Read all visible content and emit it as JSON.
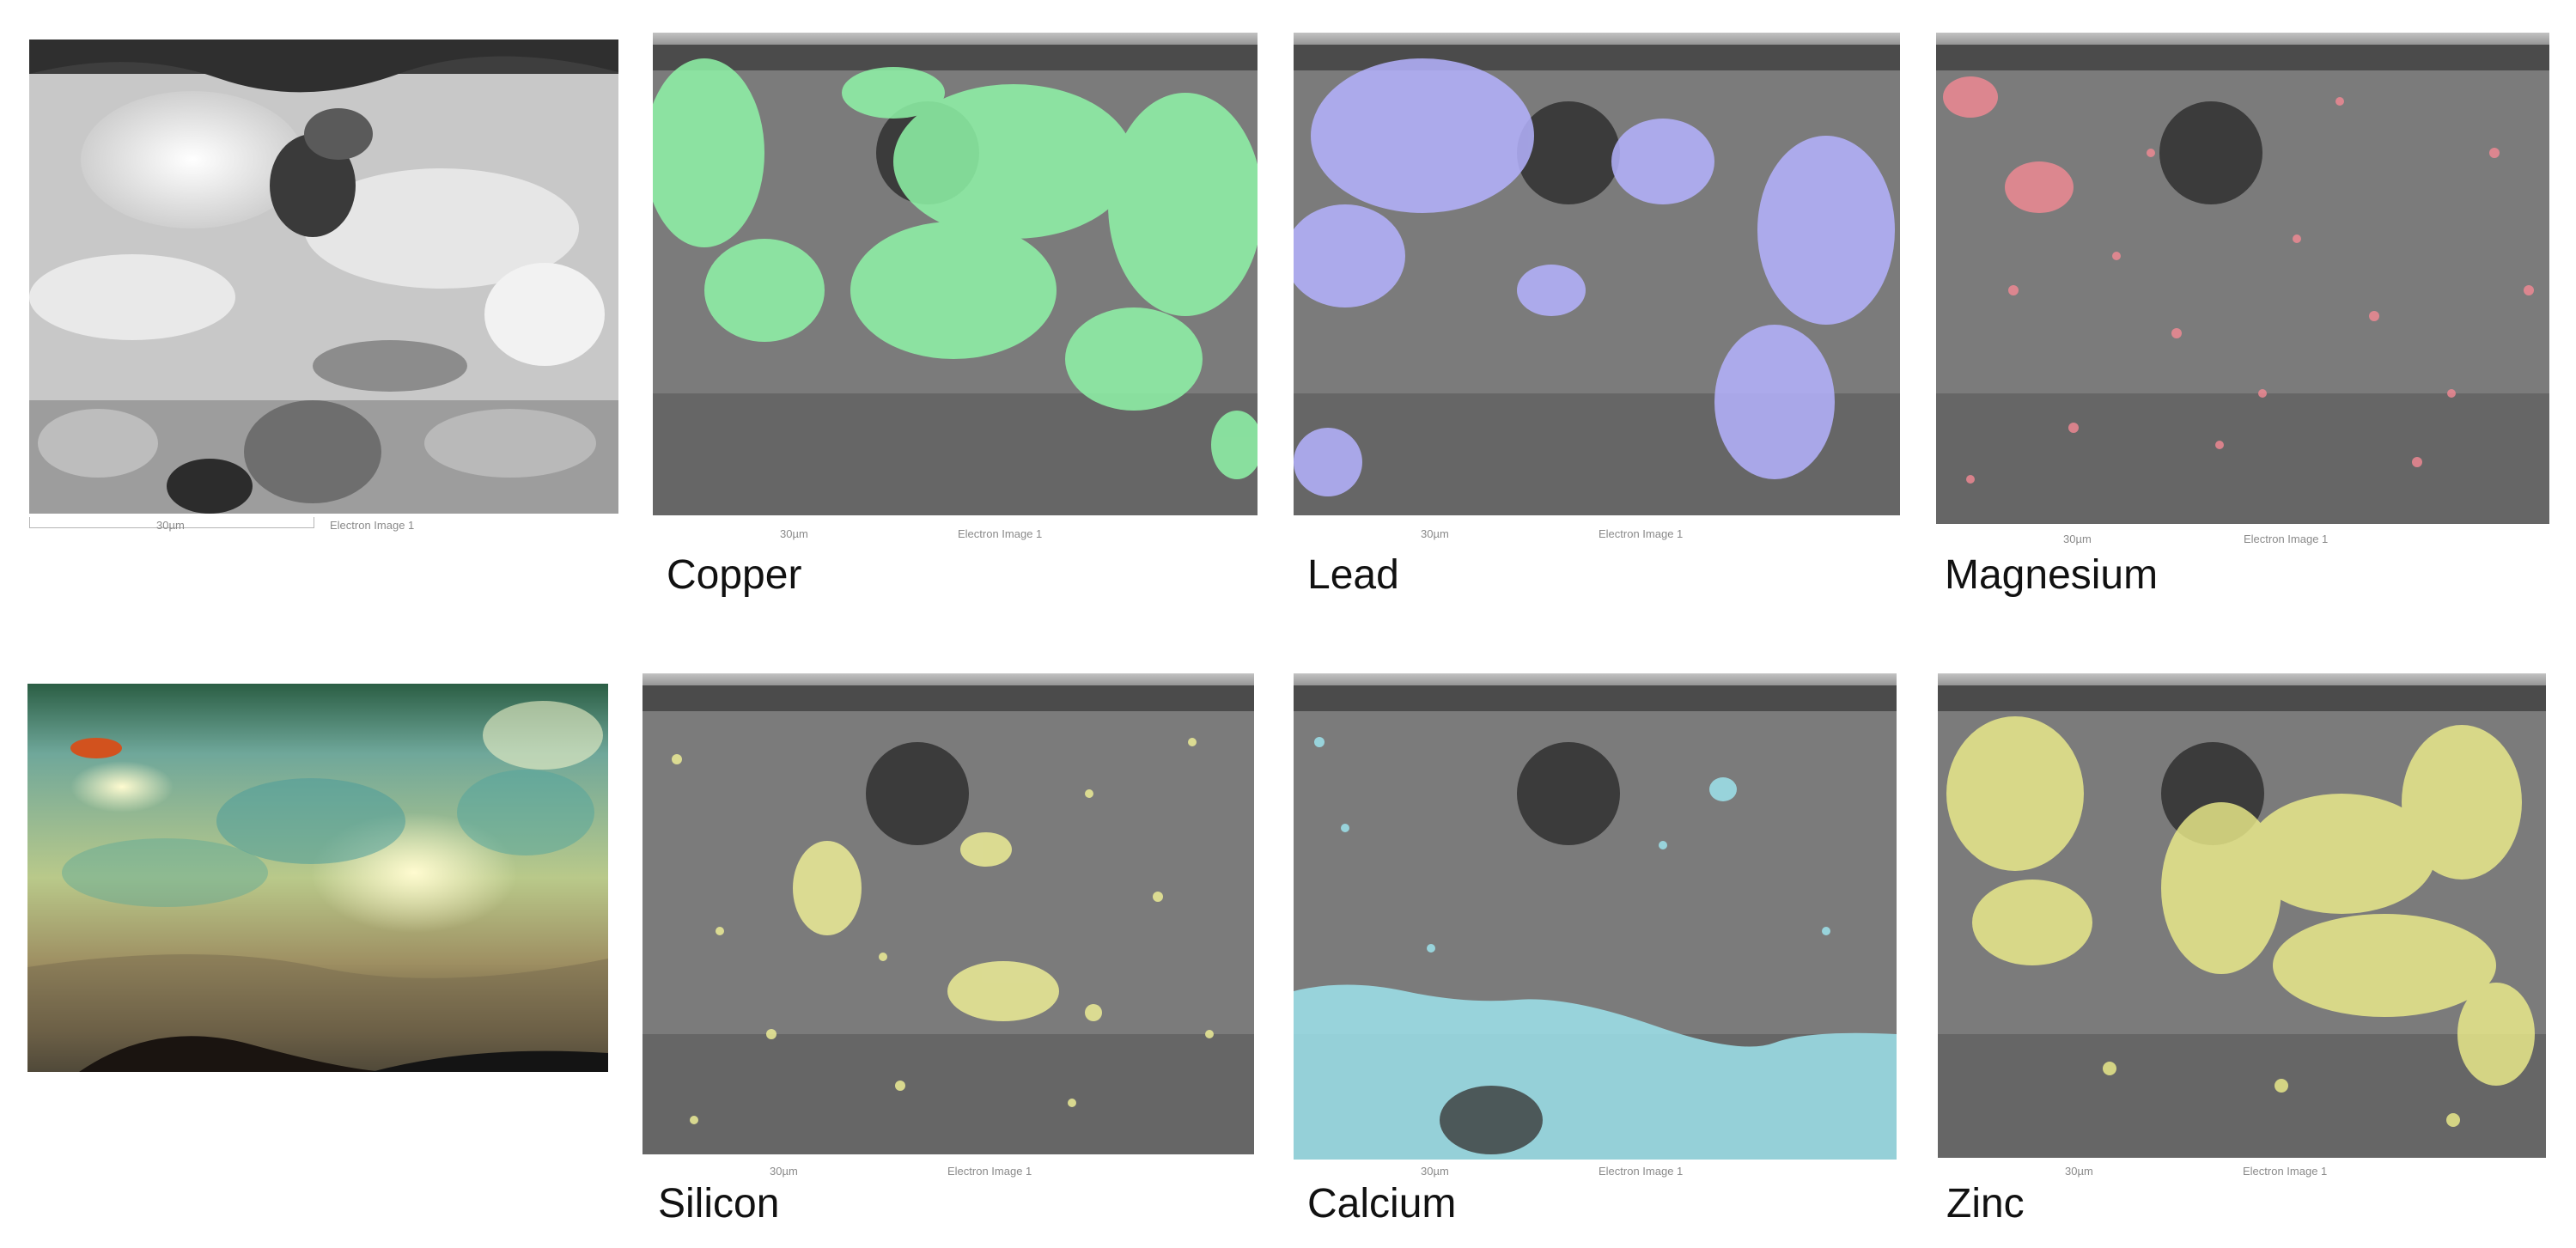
{
  "electron_image": {
    "scale_label": "30µm",
    "caption": "Electron Image 1"
  },
  "maps": [
    {
      "element": "Copper",
      "color": "#8ff5a8",
      "scale_label": "30µm",
      "caption": "Electron Image 1"
    },
    {
      "element": "Lead",
      "color": "#b5b3ff",
      "scale_label": "30µm",
      "caption": "Electron Image 1"
    },
    {
      "element": "Magnesium",
      "color": "#f58a95",
      "scale_label": "30µm",
      "caption": "Electron Image 1"
    },
    {
      "element": "Silicon",
      "color": "#ecec96",
      "scale_label": "30µm",
      "caption": "Electron Image 1"
    },
    {
      "element": "Calcium",
      "color": "#9ee3ec",
      "scale_label": "30µm",
      "caption": "Electron Image 1"
    },
    {
      "element": "Zinc",
      "color": "#f0f08c",
      "scale_label": "30µm",
      "caption": "Electron Image 1"
    }
  ]
}
